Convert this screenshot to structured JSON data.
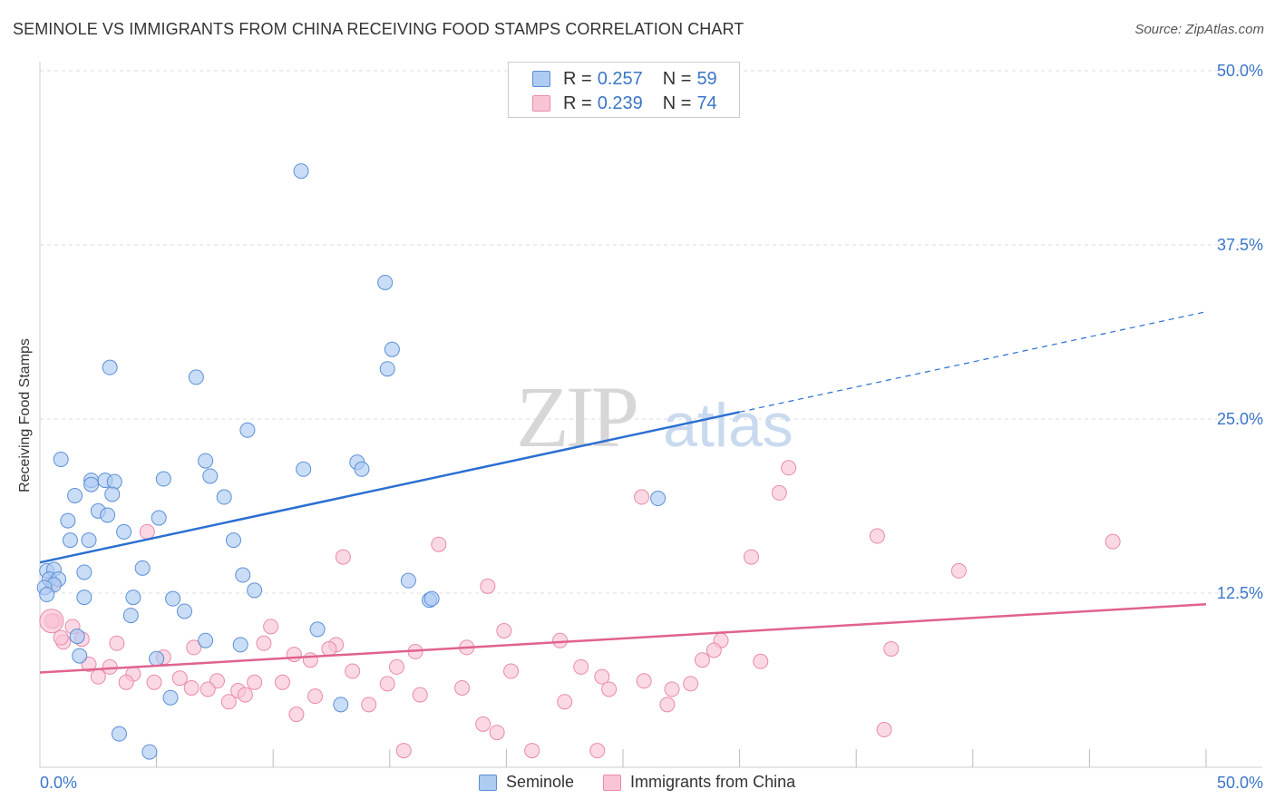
{
  "header": {
    "title": "SEMINOLE VS IMMIGRANTS FROM CHINA RECEIVING FOOD STAMPS CORRELATION CHART",
    "source": "Source: ZipAtlas.com"
  },
  "watermark": {
    "zip": "ZIP",
    "atlas": "atlas"
  },
  "legend": {
    "rows": [
      {
        "r_label": "R =",
        "r_value": "0.257",
        "n_label": "N =",
        "n_value": "59"
      },
      {
        "r_label": "R =",
        "r_value": "0.239",
        "n_label": "N =",
        "n_value": "74"
      }
    ]
  },
  "colors": {
    "seminole_fill": "#aecbf2",
    "seminole_stroke": "#5b8fd6",
    "seminole_line": "#2b6fd1",
    "china_fill": "#f9c5d5",
    "china_stroke": "#e98aaa",
    "china_line": "#e0628f",
    "grid": "#dddddd",
    "tick_label": "#3a76c8"
  },
  "chart_data": {
    "type": "scatter",
    "title": "SEMINOLE VS IMMIGRANTS FROM CHINA RECEIVING FOOD STAMPS CORRELATION CHART",
    "xlabel": "",
    "ylabel": "Receiving Food Stamps",
    "xlim": [
      0,
      50
    ],
    "ylim": [
      0,
      50
    ],
    "x_tick_labels": [
      "0.0%",
      "50.0%"
    ],
    "y_ticks": [
      12.5,
      25,
      37.5,
      50
    ],
    "y_tick_labels": [
      "12.5%",
      "25.0%",
      "37.5%",
      "50.0%"
    ],
    "legend_position": "top-center",
    "series": [
      {
        "name": "Seminole",
        "R": 0.257,
        "N": 59,
        "trend": {
          "x": [
            0,
            30
          ],
          "y": [
            14.7,
            25.5
          ],
          "dashed_extension": {
            "x": [
              30,
              50
            ],
            "y": [
              25.5,
              32.7
            ]
          }
        },
        "points": [
          [
            11.2,
            42.8
          ],
          [
            14.8,
            34.8
          ],
          [
            15.1,
            30.0
          ],
          [
            3.0,
            28.7
          ],
          [
            6.7,
            28.0
          ],
          [
            14.9,
            28.6
          ],
          [
            8.9,
            24.2
          ],
          [
            0.9,
            22.1
          ],
          [
            7.1,
            22.0
          ],
          [
            11.3,
            21.4
          ],
          [
            13.6,
            21.9
          ],
          [
            13.8,
            21.4
          ],
          [
            2.2,
            20.6
          ],
          [
            2.8,
            20.6
          ],
          [
            3.2,
            20.5
          ],
          [
            2.2,
            20.3
          ],
          [
            5.3,
            20.7
          ],
          [
            7.3,
            20.9
          ],
          [
            1.5,
            19.5
          ],
          [
            3.1,
            19.6
          ],
          [
            7.9,
            19.4
          ],
          [
            26.5,
            19.3
          ],
          [
            2.5,
            18.4
          ],
          [
            2.9,
            18.1
          ],
          [
            5.1,
            17.9
          ],
          [
            1.2,
            17.7
          ],
          [
            3.6,
            16.9
          ],
          [
            1.3,
            16.3
          ],
          [
            2.1,
            16.3
          ],
          [
            8.3,
            16.3
          ],
          [
            0.3,
            14.1
          ],
          [
            0.6,
            14.2
          ],
          [
            1.9,
            14.0
          ],
          [
            4.4,
            14.3
          ],
          [
            8.7,
            13.8
          ],
          [
            0.4,
            13.5
          ],
          [
            0.8,
            13.5
          ],
          [
            0.6,
            13.1
          ],
          [
            0.2,
            12.9
          ],
          [
            15.8,
            13.4
          ],
          [
            0.3,
            12.4
          ],
          [
            9.2,
            12.7
          ],
          [
            1.9,
            12.2
          ],
          [
            4.0,
            12.2
          ],
          [
            5.7,
            12.1
          ],
          [
            16.7,
            12.0
          ],
          [
            3.9,
            10.9
          ],
          [
            6.2,
            11.2
          ],
          [
            11.9,
            9.9
          ],
          [
            1.6,
            9.4
          ],
          [
            7.1,
            9.1
          ],
          [
            8.6,
            8.8
          ],
          [
            1.7,
            8.0
          ],
          [
            5.0,
            7.8
          ],
          [
            5.6,
            5.0
          ],
          [
            12.9,
            4.5
          ],
          [
            3.4,
            2.4
          ],
          [
            4.7,
            1.1
          ],
          [
            16.8,
            12.1
          ]
        ]
      },
      {
        "name": "Immigrants from China",
        "R": 0.239,
        "N": 74,
        "trend": {
          "x": [
            0,
            50
          ],
          "y": [
            6.8,
            11.7
          ]
        },
        "points": [
          [
            32.1,
            21.5
          ],
          [
            31.7,
            19.7
          ],
          [
            25.8,
            19.4
          ],
          [
            35.9,
            16.6
          ],
          [
            46.0,
            16.2
          ],
          [
            4.6,
            16.9
          ],
          [
            17.1,
            16.0
          ],
          [
            13.0,
            15.1
          ],
          [
            30.5,
            15.1
          ],
          [
            39.4,
            14.1
          ],
          [
            19.2,
            13.0
          ],
          [
            0.5,
            13.2
          ],
          [
            0.6,
            10.5
          ],
          [
            1.4,
            10.1
          ],
          [
            9.9,
            10.1
          ],
          [
            19.9,
            9.8
          ],
          [
            1.0,
            9.0
          ],
          [
            1.8,
            9.2
          ],
          [
            22.3,
            9.1
          ],
          [
            29.2,
            9.1
          ],
          [
            3.3,
            8.9
          ],
          [
            9.6,
            8.9
          ],
          [
            12.7,
            8.8
          ],
          [
            18.3,
            8.6
          ],
          [
            6.6,
            8.6
          ],
          [
            12.4,
            8.5
          ],
          [
            16.1,
            8.3
          ],
          [
            28.9,
            8.4
          ],
          [
            36.5,
            8.5
          ],
          [
            10.9,
            8.1
          ],
          [
            5.3,
            7.9
          ],
          [
            11.6,
            7.7
          ],
          [
            28.4,
            7.7
          ],
          [
            30.9,
            7.6
          ],
          [
            2.1,
            7.4
          ],
          [
            3.0,
            7.2
          ],
          [
            15.3,
            7.2
          ],
          [
            23.2,
            7.2
          ],
          [
            13.4,
            6.9
          ],
          [
            20.2,
            6.9
          ],
          [
            2.5,
            6.5
          ],
          [
            4.0,
            6.7
          ],
          [
            24.1,
            6.5
          ],
          [
            3.7,
            6.1
          ],
          [
            4.9,
            6.1
          ],
          [
            6.0,
            6.4
          ],
          [
            7.6,
            6.2
          ],
          [
            9.2,
            6.1
          ],
          [
            10.4,
            6.1
          ],
          [
            14.9,
            6.0
          ],
          [
            25.9,
            6.2
          ],
          [
            27.9,
            6.0
          ],
          [
            6.5,
            5.7
          ],
          [
            7.2,
            5.6
          ],
          [
            8.5,
            5.5
          ],
          [
            18.1,
            5.7
          ],
          [
            24.4,
            5.6
          ],
          [
            27.1,
            5.6
          ],
          [
            8.8,
            5.2
          ],
          [
            11.8,
            5.1
          ],
          [
            16.3,
            5.2
          ],
          [
            14.1,
            4.5
          ],
          [
            22.5,
            4.7
          ],
          [
            26.9,
            4.5
          ],
          [
            8.1,
            4.7
          ],
          [
            11.0,
            3.8
          ],
          [
            19.0,
            3.1
          ],
          [
            19.6,
            2.5
          ],
          [
            36.2,
            2.7
          ],
          [
            15.6,
            1.2
          ],
          [
            21.1,
            1.2
          ],
          [
            23.9,
            1.2
          ],
          [
            0.5,
            10.5
          ],
          [
            0.9,
            9.3
          ]
        ]
      }
    ]
  },
  "bottom_legend": {
    "items": [
      "Seminole",
      "Immigrants from China"
    ]
  }
}
